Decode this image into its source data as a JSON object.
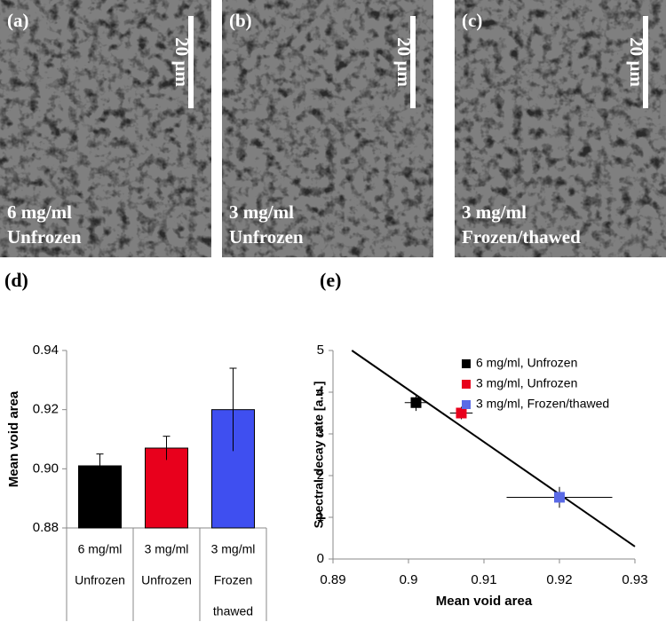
{
  "images": [
    {
      "label": "(a)",
      "scale": "20 µm",
      "caption": [
        "6 mg/ml",
        "Unfrozen"
      ]
    },
    {
      "label": "(b)",
      "scale": "20 µm",
      "caption": [
        "3 mg/ml",
        "Unfrozen"
      ]
    },
    {
      "label": "(c)",
      "scale": "20 µm",
      "caption": [
        "3 mg/ml",
        "Frozen/thawed"
      ]
    }
  ],
  "chart_data": [
    {
      "type": "bar",
      "title": "(d)",
      "y_label": "Mean void area",
      "categories": [
        [
          "6 mg/ml",
          "Unfrozen"
        ],
        [
          "3 mg/ml",
          "Unfrozen"
        ],
        [
          "3 mg/ml",
          "Frozen",
          "thawed"
        ]
      ],
      "values": [
        0.901,
        0.907,
        0.92
      ],
      "errors": [
        0.004,
        0.004,
        0.014
      ],
      "colors": [
        "#000000",
        "#e8001c",
        "#3f4ff0"
      ],
      "ylim": [
        0.88,
        0.94
      ],
      "yticks": [
        0.88,
        {
          "value": 0.9,
          "label": "0.90"
        },
        0.92,
        0.94
      ]
    },
    {
      "type": "scatter",
      "title": "(e)",
      "x_label": "Mean void area",
      "y_label": "Spectral decay rate  [a.u.]",
      "xlim": [
        0.89,
        0.93
      ],
      "xticks": [
        0.89,
        0.9,
        0.91,
        0.92,
        0.93
      ],
      "ylim": [
        0,
        5
      ],
      "yticks": [
        0,
        1,
        2,
        3,
        4,
        5
      ],
      "legend": "top-right",
      "series": [
        {
          "name": "6 mg/ml, Unfrozen",
          "color": "#000000",
          "x": [
            0.901
          ],
          "y": [
            3.75
          ],
          "xerr": [
            0.0015
          ],
          "yerr": [
            0.2
          ]
        },
        {
          "name": "3 mg/ml, Unfrozen",
          "color": "#e8001c",
          "x": [
            0.907
          ],
          "y": [
            3.5
          ],
          "xerr": [
            0.0015
          ],
          "yerr": [
            0.15
          ]
        },
        {
          "name": "3 mg/ml, Frozen/thawed",
          "color": "#5a6ae6",
          "x": [
            0.92
          ],
          "y": [
            1.48
          ],
          "xerr": [
            0.007
          ],
          "yerr": [
            0.25
          ]
        }
      ],
      "fit": {
        "x": [
          0.8925,
          0.93
        ],
        "y": [
          5,
          0.3
        ],
        "color": "#000000"
      }
    }
  ]
}
